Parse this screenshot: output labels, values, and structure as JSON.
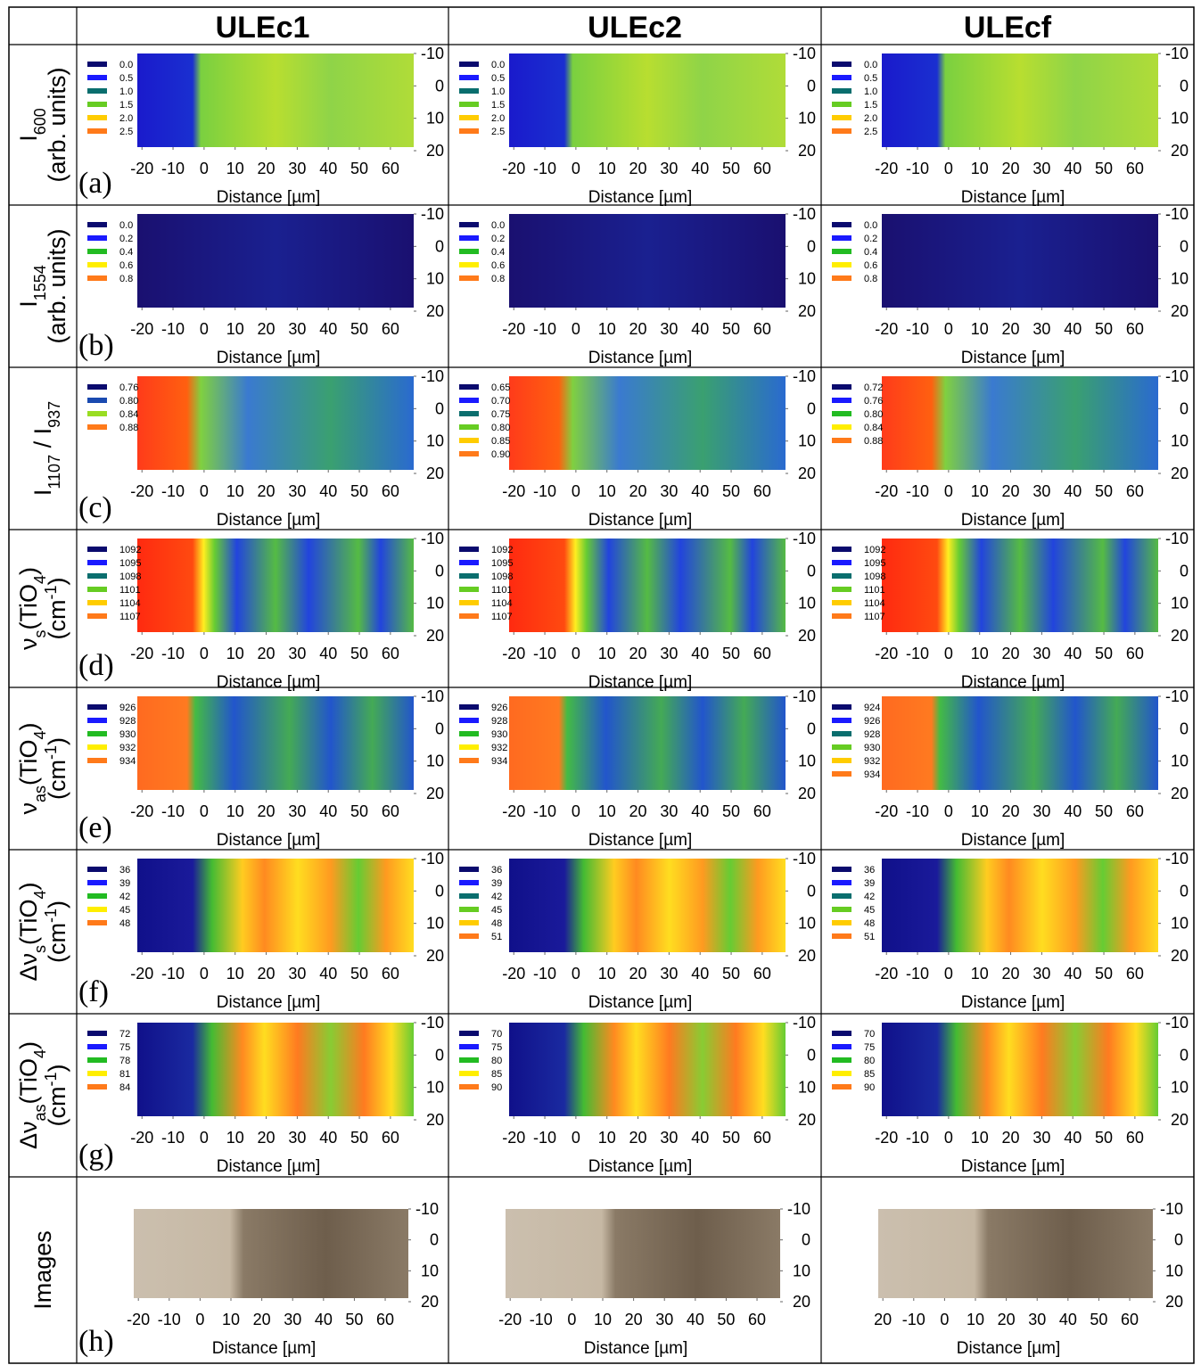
{
  "columns": [
    "ULEc1",
    "ULEc2",
    "ULEcf"
  ],
  "x_axis_label": "Distance [µm]",
  "xticks": [
    -20,
    -10,
    0,
    10,
    20,
    30,
    40,
    50,
    60
  ],
  "yticks": [
    -10,
    0,
    10,
    20
  ],
  "palettes": {
    "4": [
      "#0a0a6e",
      "#1a4ab0",
      "#99dd22",
      "#ff7a1a"
    ],
    "5": [
      "#0a0a6e",
      "#1a1aff",
      "#22bb22",
      "#ffee00",
      "#ff7a1a"
    ],
    "6": [
      "#0a0a6e",
      "#1a1aff",
      "#0a6e6e",
      "#66cc22",
      "#ffcc00",
      "#ff7a1a"
    ]
  },
  "rows": [
    {
      "letter": "(a)",
      "label_lines": [
        [
          {
            "t": "I"
          },
          {
            "t": "600",
            "sub": true
          }
        ],
        [
          {
            "t": "(arb. units)"
          }
        ]
      ],
      "panels": [
        {
          "legend": [
            "0.0",
            "0.5",
            "1.0",
            "1.5",
            "2.0",
            "2.5"
          ]
        },
        {
          "legend": [
            "0.0",
            "0.5",
            "1.0",
            "1.5",
            "2.0",
            "2.5"
          ]
        },
        {
          "legend": [
            "0.0",
            "0.5",
            "1.0",
            "1.5",
            "2.0",
            "2.5"
          ]
        }
      ]
    },
    {
      "letter": "(b)",
      "label_lines": [
        [
          {
            "t": "I"
          },
          {
            "t": "1554",
            "sub": true
          }
        ],
        [
          {
            "t": "(arb. units)"
          }
        ]
      ],
      "panels": [
        {
          "legend": [
            "0.0",
            "0.2",
            "0.4",
            "0.6",
            "0.8"
          ]
        },
        {
          "legend": [
            "0.0",
            "0.2",
            "0.4",
            "0.6",
            "0.8"
          ]
        },
        {
          "legend": [
            "0.0",
            "0.2",
            "0.4",
            "0.6",
            "0.8"
          ]
        }
      ]
    },
    {
      "letter": "(c)",
      "label_lines": [
        [
          {
            "t": "I"
          },
          {
            "t": "1107",
            "sub": true
          },
          {
            "t": " / I"
          },
          {
            "t": "937",
            "sub": true
          }
        ]
      ],
      "panels": [
        {
          "legend": [
            "0.76",
            "0.80",
            "0.84",
            "0.88"
          ]
        },
        {
          "legend": [
            "0.65",
            "0.70",
            "0.75",
            "0.80",
            "0.85",
            "0.90"
          ]
        },
        {
          "legend": [
            "0.72",
            "0.76",
            "0.80",
            "0.84",
            "0.88"
          ]
        }
      ]
    },
    {
      "letter": "(d)",
      "label_lines": [
        [
          {
            "t": "ν"
          },
          {
            "t": "s",
            "sub": true
          },
          {
            "t": "(TiO"
          },
          {
            "t": "4",
            "sub": true
          },
          {
            "t": ")"
          }
        ],
        [
          {
            "t": "(cm"
          },
          {
            "t": "-1",
            "sup": true
          },
          {
            "t": ")"
          }
        ]
      ],
      "panels": [
        {
          "legend": [
            "1092",
            "1095",
            "1098",
            "1101",
            "1104",
            "1107"
          ]
        },
        {
          "legend": [
            "1092",
            "1095",
            "1098",
            "1101",
            "1104",
            "1107"
          ]
        },
        {
          "legend": [
            "1092",
            "1095",
            "1098",
            "1101",
            "1104",
            "1107"
          ]
        }
      ]
    },
    {
      "letter": "(e)",
      "label_lines": [
        [
          {
            "t": "ν"
          },
          {
            "t": "as",
            "sub": true
          },
          {
            "t": "(TiO"
          },
          {
            "t": "4",
            "sub": true
          },
          {
            "t": ")"
          }
        ],
        [
          {
            "t": "(cm"
          },
          {
            "t": "-1",
            "sup": true
          },
          {
            "t": ")"
          }
        ]
      ],
      "panels": [
        {
          "legend": [
            "926",
            "928",
            "930",
            "932",
            "934"
          ]
        },
        {
          "legend": [
            "926",
            "928",
            "930",
            "932",
            "934"
          ]
        },
        {
          "legend": [
            "924",
            "926",
            "928",
            "930",
            "932",
            "934"
          ]
        }
      ]
    },
    {
      "letter": "(f)",
      "label_lines": [
        [
          {
            "t": "Δν"
          },
          {
            "t": "s",
            "sub": true
          },
          {
            "t": "(TiO"
          },
          {
            "t": "4",
            "sub": true
          },
          {
            "t": ")"
          }
        ],
        [
          {
            "t": "(cm"
          },
          {
            "t": "-1",
            "sup": true
          },
          {
            "t": ")"
          }
        ]
      ],
      "panels": [
        {
          "legend": [
            "36",
            "39",
            "42",
            "45",
            "48"
          ]
        },
        {
          "legend": [
            "36",
            "39",
            "42",
            "45",
            "48",
            "51"
          ]
        },
        {
          "legend": [
            "36",
            "39",
            "42",
            "45",
            "48",
            "51"
          ]
        }
      ]
    },
    {
      "letter": "(g)",
      "label_lines": [
        [
          {
            "t": "Δν"
          },
          {
            "t": "as",
            "sub": true
          },
          {
            "t": "(TiO"
          },
          {
            "t": "4",
            "sub": true
          },
          {
            "t": ")"
          }
        ],
        [
          {
            "t": "(cm"
          },
          {
            "t": "-1",
            "sup": true
          },
          {
            "t": ")"
          }
        ]
      ],
      "panels": [
        {
          "legend": [
            "72",
            "75",
            "78",
            "81",
            "84"
          ]
        },
        {
          "legend": [
            "70",
            "75",
            "80",
            "85",
            "90"
          ]
        },
        {
          "legend": [
            "70",
            "75",
            "80",
            "85",
            "90"
          ]
        }
      ]
    },
    {
      "letter": "(h)",
      "label_lines": [
        [
          {
            "t": "Images"
          }
        ]
      ],
      "panels": [
        {},
        {},
        {
          "xticks": [
            {
              "value": -20,
              "label": "20"
            },
            -10,
            0,
            10,
            20,
            30,
            40,
            50,
            60
          ]
        }
      ]
    }
  ]
}
